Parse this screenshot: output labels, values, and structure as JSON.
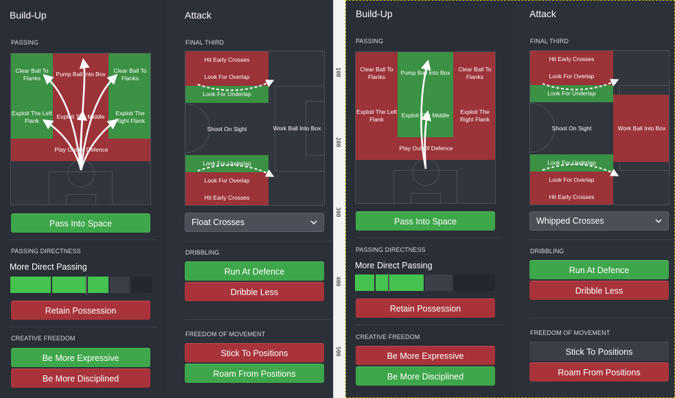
{
  "left": {
    "buildup": {
      "title": "Build-Up",
      "passing_label": "PASSING",
      "zones": {
        "clear_left": "Clear Ball To Flanks",
        "pump": "Pump Ball Into Box",
        "clear_right": "Clear Ball To Flanks",
        "exploit_left": "Exploit The Left Flank",
        "exploit_middle": "Exploit The Middle",
        "exploit_right": "Exploit The Right Flank",
        "play_out": "Play Out Of Defence"
      },
      "pass_into_space": "Pass Into Space",
      "directness_label": "PASSING DIRECTNESS",
      "directness_value": "More Direct Passing",
      "directness_level": 0.7,
      "retain": "Retain Possession",
      "creative_label": "CREATIVE FREEDOM",
      "expressive": "Be More Expressive",
      "disciplined": "Be More Disciplined"
    },
    "attack": {
      "title": "Attack",
      "final_third_label": "FINAL THIRD",
      "zones": {
        "hit_early_top": "Hit Early Crosses",
        "overlap_top": "Look For Overlap",
        "underlap_top": "Look For Underlap",
        "shoot": "Shoot On Sight",
        "work_ball": "Work Ball Into Box",
        "underlap_bottom": "Look For Underlap",
        "overlap_bottom": "Look For Overlap",
        "hit_early_bottom": "Hit Early Crosses"
      },
      "crossing_value": "Float Crosses",
      "dribbling_label": "DRIBBLING",
      "run_at_defence": "Run At Defence",
      "dribble_less": "Dribble Less",
      "movement_label": "FREEDOM OF MOVEMENT",
      "stick": "Stick To Positions",
      "roam": "Roam From Positions"
    }
  },
  "right": {
    "buildup": {
      "title": "Build-Up",
      "passing_label": "PASSING",
      "zones": {
        "clear_left": "Clear Ball To Flanks",
        "pump": "Pump Ball Into Box",
        "clear_right": "Clear Ball To Flanks",
        "exploit_left": "Exploit The Left Flank",
        "exploit_middle": "Exploit The Middle",
        "exploit_right": "Exploit The Right Flank",
        "play_out": "Play Out Of Defence"
      },
      "pass_into_space": "Pass Into Space",
      "directness_label": "PASSING DIRECTNESS",
      "directness_value": "More Direct Passing",
      "directness_level": 0.5,
      "retain": "Retain Possession",
      "creative_label": "CREATIVE FREEDOM",
      "expressive": "Be More Expressive",
      "disciplined": "Be More Disciplined"
    },
    "attack": {
      "title": "Attack",
      "final_third_label": "FINAL THIRD",
      "zones": {
        "hit_early_top": "Hit Early Crosses",
        "overlap_top": "Look For Overlap",
        "underlap_top": "Look For Underlap",
        "shoot": "Shoot On Sight",
        "work_ball": "Work Ball Into Box",
        "underlap_bottom": "Look For Underlap",
        "overlap_bottom": "Look For Overlap",
        "hit_early_bottom": "Hit Early Crosses"
      },
      "crossing_value": "Whipped Crosses",
      "dribbling_label": "DRIBBLING",
      "run_at_defence": "Run At Defence",
      "dribble_less": "Dribble Less",
      "movement_label": "FREEDOM OF MOVEMENT",
      "stick": "Stick To Positions",
      "roam": "Roam From Positions"
    }
  },
  "ruler": {
    "marks": [
      "100",
      "200",
      "300",
      "400",
      "500"
    ]
  },
  "colors": {
    "green": "#3ea64b",
    "red": "#a8333a",
    "neutral": "#3a3f47"
  }
}
